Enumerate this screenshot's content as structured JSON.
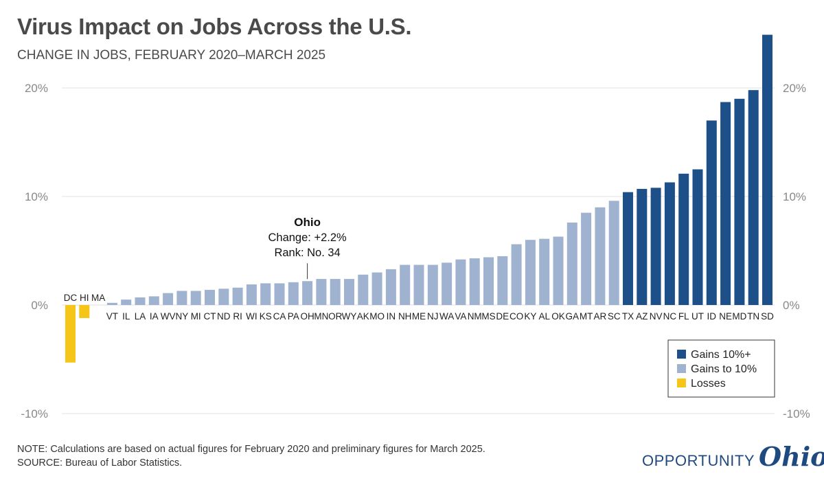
{
  "title": "Virus Impact on Jobs Across the U.S.",
  "subtitle": "CHANGE IN JOBS, FEBRUARY 2020–MARCH 2025",
  "note": "NOTE: Calculations are based on actual figures for February 2020 and preliminary figures for March 2025.",
  "source": "SOURCE: Bureau of Labor Statistics.",
  "logo": {
    "word1": "OPPORTUNITY",
    "word2": "Ohio"
  },
  "colors": {
    "gains_10_plus": "#1d5088",
    "gains_to_10": "#9fb2cf",
    "losses": "#f5c518",
    "grid": "#e2e2e2",
    "tick_text": "#888888"
  },
  "annotation": {
    "state": "OH",
    "title": "Ohio",
    "line1": "Change: +2.2%",
    "line2": "Rank: No. 34"
  },
  "chart_data": {
    "type": "bar",
    "title": "Virus Impact on Jobs Across the U.S.",
    "subtitle": "CHANGE IN JOBS, FEBRUARY 2020–MARCH 2025",
    "ylim": [
      -10,
      25
    ],
    "yticks": [
      20,
      10,
      0,
      -10
    ],
    "ytick_labels": [
      "20%",
      "10%",
      "0%",
      "-10%"
    ],
    "grid": true,
    "legend_position": "bottom-right",
    "legend": [
      "Gains 10%+",
      "Gains to 10%",
      "Losses"
    ],
    "categories": [
      "DC",
      "HI",
      "MA",
      "VT",
      "IL",
      "LA",
      "IA",
      "WV",
      "NY",
      "MI",
      "CT",
      "ND",
      "RI",
      "WI",
      "KS",
      "CA",
      "PA",
      "OH",
      "MN",
      "OR",
      "WY",
      "AK",
      "MO",
      "IN",
      "NH",
      "ME",
      "NJ",
      "WA",
      "VA",
      "NM",
      "MS",
      "DE",
      "CO",
      "KY",
      "AL",
      "OK",
      "GA",
      "MT",
      "AR",
      "SC",
      "TX",
      "AZ",
      "NV",
      "NC",
      "FL",
      "UT",
      "ID",
      "NE",
      "MD",
      "TN",
      "SD"
    ],
    "values": [
      -5.3,
      -1.2,
      0.0,
      0.2,
      0.5,
      0.7,
      0.8,
      1.1,
      1.3,
      1.3,
      1.4,
      1.5,
      1.6,
      1.9,
      2.0,
      2.0,
      2.1,
      2.2,
      2.4,
      2.4,
      2.4,
      2.8,
      3.0,
      3.3,
      3.7,
      3.7,
      3.7,
      3.9,
      4.2,
      4.3,
      4.4,
      4.5,
      5.6,
      6.0,
      6.1,
      6.3,
      7.6,
      8.5,
      9.0,
      9.6,
      10.4,
      10.7,
      10.8,
      11.3,
      12.1,
      12.5,
      17.0,
      18.7,
      19.0,
      19.8,
      24.9
    ],
    "groups": [
      "losses",
      "losses",
      "losses",
      "gains_to_10",
      "gains_to_10",
      "gains_to_10",
      "gains_to_10",
      "gains_to_10",
      "gains_to_10",
      "gains_to_10",
      "gains_to_10",
      "gains_to_10",
      "gains_to_10",
      "gains_to_10",
      "gains_to_10",
      "gains_to_10",
      "gains_to_10",
      "gains_to_10",
      "gains_to_10",
      "gains_to_10",
      "gains_to_10",
      "gains_to_10",
      "gains_to_10",
      "gains_to_10",
      "gains_to_10",
      "gains_to_10",
      "gains_to_10",
      "gains_to_10",
      "gains_to_10",
      "gains_to_10",
      "gains_to_10",
      "gains_to_10",
      "gains_to_10",
      "gains_to_10",
      "gains_to_10",
      "gains_to_10",
      "gains_to_10",
      "gains_to_10",
      "gains_to_10",
      "gains_to_10",
      "gains_10_plus",
      "gains_10_plus",
      "gains_10_plus",
      "gains_10_plus",
      "gains_10_plus",
      "gains_10_plus",
      "gains_10_plus",
      "gains_10_plus",
      "gains_10_plus",
      "gains_10_plus",
      "gains_10_plus"
    ],
    "negative_labels_above_axis": [
      "DC",
      "HI",
      "MA"
    ]
  }
}
